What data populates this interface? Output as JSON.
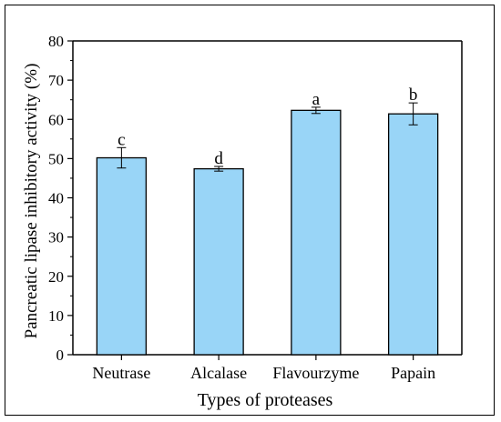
{
  "chart_data": {
    "type": "bar",
    "title": "",
    "xlabel": "Types of proteases",
    "ylabel": "Pancreatic lipase  inhibitory activity (%)",
    "categories": [
      "Neutrase",
      "Alcalase",
      "Flavourzyme",
      "Papain"
    ],
    "values": [
      50.2,
      47.4,
      62.3,
      61.4
    ],
    "errors": [
      2.6,
      0.6,
      0.8,
      2.8
    ],
    "significance_labels": [
      "c",
      "d",
      "a",
      "b"
    ],
    "ylim": [
      0,
      80
    ],
    "yticks": [
      0,
      10,
      20,
      30,
      40,
      50,
      60,
      70,
      80
    ],
    "bar_color": "#99d5f7",
    "edge_color": "#000000",
    "grid": false,
    "legend": "none"
  }
}
